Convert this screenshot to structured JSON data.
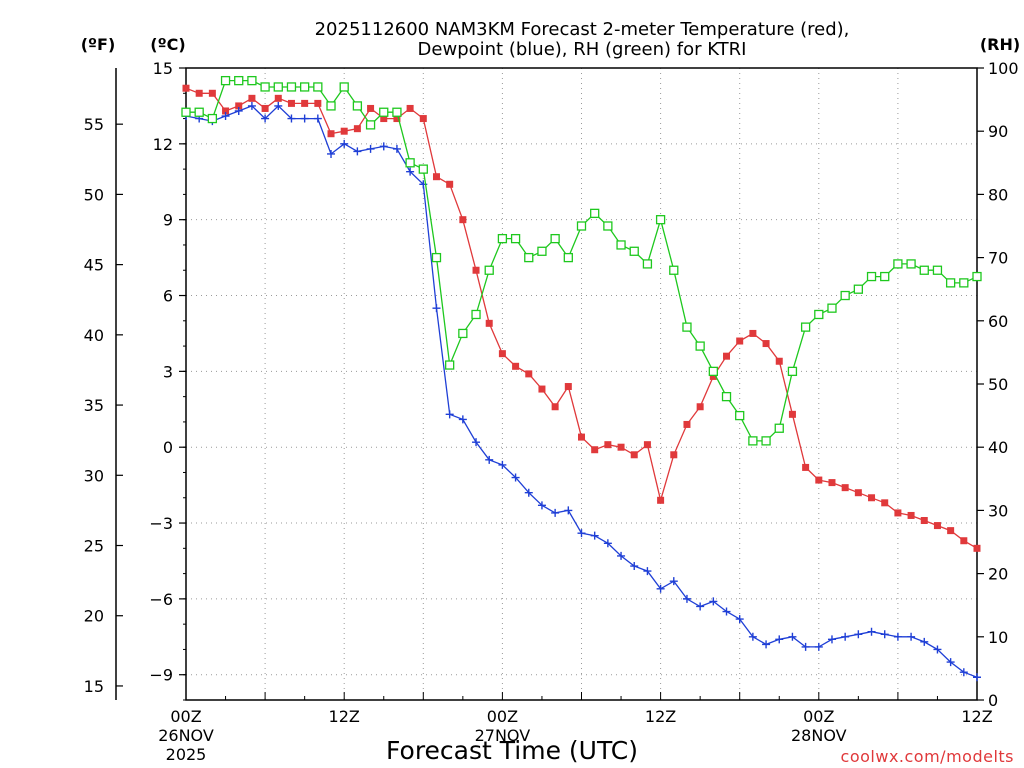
{
  "chart_data": {
    "type": "line",
    "title_line1": "2025112600 NAM3KM Forecast 2-meter Temperature (red),",
    "title_line2": "Dewpoint (blue), RH (green) for KTRI",
    "xlabel": "Forecast Time (UTC)",
    "credit": "coolwx.com/modelts",
    "units": {
      "fahrenheit": "(ºF)",
      "celsius": "(ºC)",
      "rh": "(RH)"
    },
    "colors": {
      "temperature": "#e0393b",
      "dewpoint": "#1f3fd6",
      "rh": "#1ec81e",
      "grid": "#9a9a9a"
    },
    "x_hours_range": [
      0,
      60
    ],
    "x_ticks": [
      {
        "hour": 0,
        "lines": [
          "00Z",
          "26NOV",
          "2025"
        ]
      },
      {
        "hour": 12,
        "lines": [
          "12Z"
        ]
      },
      {
        "hour": 24,
        "lines": [
          "00Z",
          "27NOV"
        ]
      },
      {
        "hour": 36,
        "lines": [
          "12Z"
        ]
      },
      {
        "hour": 48,
        "lines": [
          "00Z",
          "28NOV"
        ]
      },
      {
        "hour": 60,
        "lines": [
          "12Z"
        ]
      }
    ],
    "ylim_c": [
      -10,
      15
    ],
    "y_ticks_c": [
      {
        "value": 15,
        "label": "15"
      },
      {
        "value": 12,
        "label": "12"
      },
      {
        "value": 9,
        "label": "9"
      },
      {
        "value": 6,
        "label": "6"
      },
      {
        "value": 3,
        "label": "3"
      },
      {
        "value": 0,
        "label": "0"
      },
      {
        "value": -3,
        "label": "−3"
      },
      {
        "value": -6,
        "label": "−6"
      },
      {
        "value": -9,
        "label": "−9"
      }
    ],
    "y_ticks_f": [
      "15",
      "20",
      "25",
      "30",
      "35",
      "40",
      "45",
      "50",
      "55"
    ],
    "ylim_rh": [
      0,
      100
    ],
    "y_ticks_rh": [
      "0",
      "10",
      "20",
      "30",
      "40",
      "50",
      "60",
      "70",
      "80",
      "90",
      "100"
    ],
    "series": [
      {
        "name": "Temperature (C)",
        "key": "temperature",
        "marker": "filled-square",
        "values": [
          14.2,
          14.0,
          14.0,
          13.3,
          13.5,
          13.8,
          13.4,
          13.8,
          13.6,
          13.6,
          13.6,
          12.4,
          12.5,
          12.6,
          13.4,
          13.0,
          13.0,
          13.4,
          13.0,
          10.7,
          10.4,
          9.0,
          7.0,
          4.9,
          3.7,
          3.2,
          2.9,
          2.3,
          1.6,
          2.4,
          0.4,
          -0.1,
          0.1,
          0.0,
          -0.3,
          0.1,
          -2.1,
          -0.3,
          0.9,
          1.6,
          2.8,
          3.6,
          4.2,
          4.5,
          4.1,
          3.4,
          1.3,
          -0.8,
          -1.3,
          -1.4,
          -1.6,
          -1.8,
          -2.0,
          -2.2,
          -2.6,
          -2.7,
          -2.9,
          -3.1,
          -3.3,
          -3.7,
          -4.0
        ]
      },
      {
        "name": "Dewpoint (C)",
        "key": "dewpoint",
        "marker": "plus",
        "values": [
          13.1,
          13.0,
          12.9,
          13.1,
          13.3,
          13.5,
          13.0,
          13.5,
          13.0,
          13.0,
          13.0,
          11.6,
          12.0,
          11.7,
          11.8,
          11.9,
          11.8,
          10.9,
          10.4,
          5.5,
          1.3,
          1.1,
          0.2,
          -0.5,
          -0.7,
          -1.2,
          -1.8,
          -2.3,
          -2.6,
          -2.5,
          -3.4,
          -3.5,
          -3.8,
          -4.3,
          -4.7,
          -4.9,
          -5.6,
          -5.3,
          -6.0,
          -6.3,
          -6.1,
          -6.5,
          -6.8,
          -7.5,
          -7.8,
          -7.6,
          -7.5,
          -7.9,
          -7.9,
          -7.6,
          -7.5,
          -7.4,
          -7.3,
          -7.4,
          -7.5,
          -7.5,
          -7.7,
          -8.0,
          -8.5,
          -8.9,
          -9.1
        ]
      },
      {
        "name": "RH (%)",
        "key": "rh",
        "marker": "open-square",
        "values": [
          93,
          93,
          92,
          98,
          98,
          98,
          97,
          97,
          97,
          97,
          97,
          94,
          97,
          94,
          91,
          93,
          93,
          85,
          84,
          70,
          53,
          58,
          61,
          68,
          73,
          73,
          70,
          71,
          73,
          70,
          75,
          77,
          75,
          72,
          71,
          69,
          76,
          68,
          59,
          56,
          52,
          48,
          45,
          41,
          41,
          43,
          52,
          59,
          61,
          62,
          64,
          65,
          67,
          67,
          69,
          69,
          68,
          68,
          66,
          66,
          67
        ]
      }
    ]
  }
}
